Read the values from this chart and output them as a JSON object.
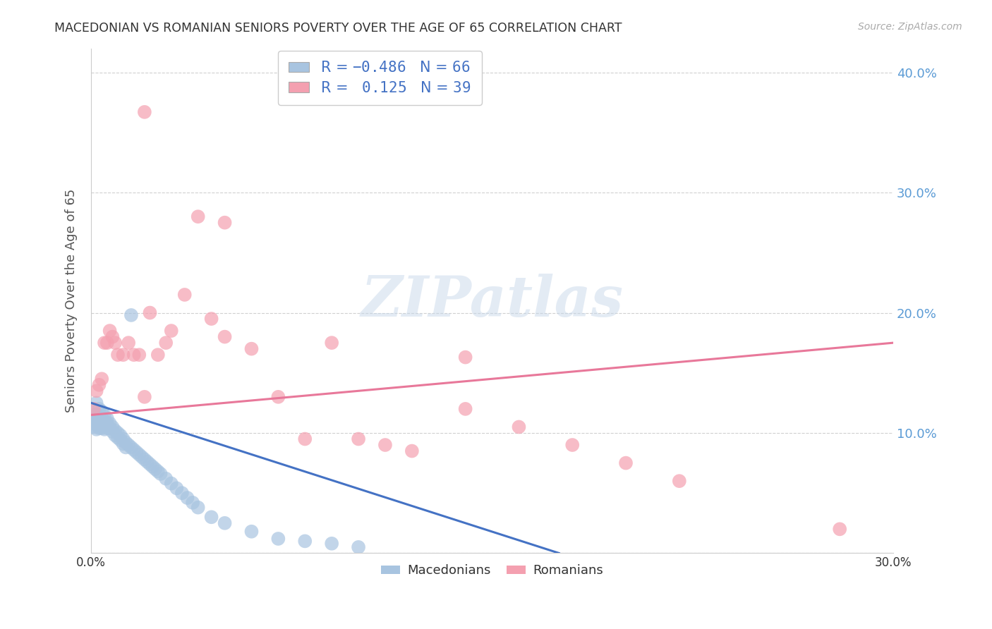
{
  "title": "MACEDONIAN VS ROMANIAN SENIORS POVERTY OVER THE AGE OF 65 CORRELATION CHART",
  "source": "Source: ZipAtlas.com",
  "ylabel": "Seniors Poverty Over the Age of 65",
  "xlim": [
    0.0,
    0.3
  ],
  "ylim": [
    0.0,
    0.42
  ],
  "xticks": [
    0.0,
    0.05,
    0.1,
    0.15,
    0.2,
    0.25,
    0.3
  ],
  "yticks": [
    0.0,
    0.1,
    0.2,
    0.3,
    0.4
  ],
  "macedonian_color": "#a8c4e0",
  "romanian_color": "#f4a0b0",
  "mac_line_color": "#4472c4",
  "rom_line_color": "#e8789a",
  "mac_R": -0.486,
  "mac_N": 66,
  "rom_R": 0.125,
  "rom_N": 39,
  "legend_mac_label": "Macedonians",
  "legend_rom_label": "Romanians",
  "grid_color": "#d0d0d0",
  "background_color": "#ffffff",
  "axis_label_color": "#555555",
  "tick_label_color_right": "#5b9bd5",
  "watermark": "ZIPatlas",
  "mac_line_x": [
    0.0,
    0.175
  ],
  "mac_line_y": [
    0.125,
    0.0
  ],
  "rom_line_x": [
    0.0,
    0.3
  ],
  "rom_line_y": [
    0.115,
    0.175
  ],
  "macedonian_x": [
    0.001,
    0.001,
    0.001,
    0.001,
    0.002,
    0.002,
    0.002,
    0.002,
    0.002,
    0.003,
    0.003,
    0.003,
    0.003,
    0.004,
    0.004,
    0.004,
    0.004,
    0.005,
    0.005,
    0.005,
    0.005,
    0.006,
    0.006,
    0.006,
    0.007,
    0.007,
    0.008,
    0.008,
    0.009,
    0.009,
    0.01,
    0.01,
    0.011,
    0.011,
    0.012,
    0.012,
    0.013,
    0.013,
    0.014,
    0.015,
    0.016,
    0.017,
    0.018,
    0.019,
    0.02,
    0.021,
    0.022,
    0.023,
    0.024,
    0.025,
    0.026,
    0.028,
    0.03,
    0.032,
    0.034,
    0.036,
    0.038,
    0.04,
    0.045,
    0.05,
    0.06,
    0.07,
    0.08,
    0.09,
    0.1,
    0.015
  ],
  "macedonian_y": [
    0.115,
    0.11,
    0.105,
    0.108,
    0.125,
    0.115,
    0.11,
    0.107,
    0.103,
    0.12,
    0.112,
    0.108,
    0.104,
    0.118,
    0.112,
    0.108,
    0.104,
    0.115,
    0.11,
    0.106,
    0.103,
    0.112,
    0.108,
    0.104,
    0.108,
    0.104,
    0.105,
    0.101,
    0.102,
    0.098,
    0.1,
    0.096,
    0.098,
    0.094,
    0.095,
    0.091,
    0.092,
    0.088,
    0.09,
    0.088,
    0.086,
    0.084,
    0.082,
    0.08,
    0.078,
    0.076,
    0.074,
    0.072,
    0.07,
    0.068,
    0.066,
    0.062,
    0.058,
    0.054,
    0.05,
    0.046,
    0.042,
    0.038,
    0.03,
    0.025,
    0.018,
    0.012,
    0.01,
    0.008,
    0.005,
    0.198
  ],
  "romanian_x": [
    0.001,
    0.002,
    0.003,
    0.004,
    0.005,
    0.006,
    0.007,
    0.008,
    0.009,
    0.01,
    0.012,
    0.014,
    0.016,
    0.018,
    0.02,
    0.022,
    0.025,
    0.028,
    0.03,
    0.035,
    0.04,
    0.045,
    0.05,
    0.06,
    0.07,
    0.08,
    0.09,
    0.1,
    0.11,
    0.12,
    0.14,
    0.16,
    0.18,
    0.2,
    0.22,
    0.28,
    0.02,
    0.05,
    0.14
  ],
  "romanian_y": [
    0.12,
    0.135,
    0.14,
    0.145,
    0.175,
    0.175,
    0.185,
    0.18,
    0.175,
    0.165,
    0.165,
    0.175,
    0.165,
    0.165,
    0.13,
    0.2,
    0.165,
    0.175,
    0.185,
    0.215,
    0.28,
    0.195,
    0.18,
    0.17,
    0.13,
    0.095,
    0.175,
    0.095,
    0.09,
    0.085,
    0.12,
    0.105,
    0.09,
    0.075,
    0.06,
    0.02,
    0.367,
    0.275,
    0.163
  ]
}
